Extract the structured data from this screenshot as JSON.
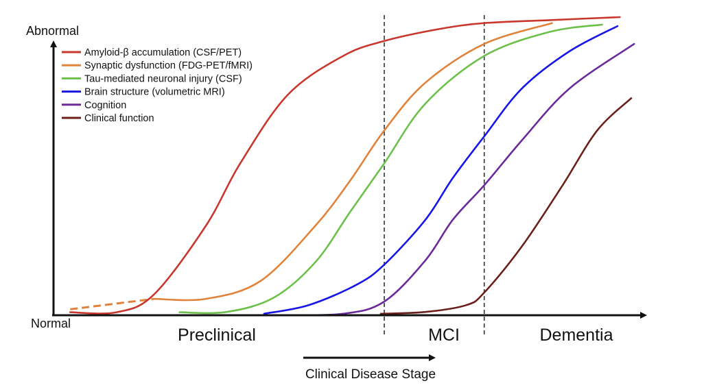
{
  "chart_data": {
    "type": "line",
    "title": "",
    "ylabel_top": "Abnormal",
    "ylabel_bottom": "Normal",
    "xlabel": "Clinical Disease Stage",
    "x_range": [
      0,
      100
    ],
    "y_range": [
      0,
      1
    ],
    "grid": false,
    "legend_position": "top-left",
    "stages": [
      {
        "label": "Preclinical",
        "x_center": 27.5
      },
      {
        "label": "MCI",
        "x_center": 65.5
      },
      {
        "label": "Dementia",
        "x_center": 89.5
      }
    ],
    "stage_boundaries": [
      55.6,
      72.4
    ],
    "series": [
      {
        "name": "Amyloid-β accumulation (CSF/PET)",
        "color": "#c8372d",
        "points": [
          [
            2.8,
            0.01
          ],
          [
            10.6,
            0.01
          ],
          [
            16.9,
            0.07
          ],
          [
            25.6,
            0.3
          ],
          [
            31.4,
            0.51
          ],
          [
            39.4,
            0.74
          ],
          [
            48.7,
            0.87
          ],
          [
            55.6,
            0.92
          ],
          [
            64.8,
            0.96
          ],
          [
            72.4,
            0.98
          ],
          [
            83.3,
            0.99
          ],
          [
            95.2,
            1.0
          ]
        ]
      },
      {
        "name": "Synaptic dysfunction (FDG-PET/fMRI)",
        "color": "#e0823a",
        "dashed_points": [
          [
            2.8,
            0.02
          ],
          [
            16.9,
            0.055
          ]
        ],
        "points": [
          [
            16.9,
            0.055
          ],
          [
            25.6,
            0.055
          ],
          [
            34.8,
            0.115
          ],
          [
            44.0,
            0.3
          ],
          [
            49.8,
            0.45
          ],
          [
            55.6,
            0.62
          ],
          [
            62.5,
            0.78
          ],
          [
            72.4,
            0.91
          ],
          [
            83.8,
            0.98
          ]
        ]
      },
      {
        "name": "Tau-mediated neuronal injury (CSF)",
        "color": "#6cc04a",
        "points": [
          [
            21.2,
            0.01
          ],
          [
            29.1,
            0.011
          ],
          [
            37.1,
            0.06
          ],
          [
            44.1,
            0.18
          ],
          [
            49.8,
            0.345
          ],
          [
            55.6,
            0.51
          ],
          [
            62.5,
            0.71
          ],
          [
            72.4,
            0.87
          ],
          [
            83.3,
            0.95
          ],
          [
            92.2,
            0.975
          ]
        ]
      },
      {
        "name": "Brain structure (volumetric MRI)",
        "color": "#1616e6",
        "points": [
          [
            35.4,
            0.005
          ],
          [
            42.9,
            0.034
          ],
          [
            51.0,
            0.103
          ],
          [
            55.6,
            0.17
          ],
          [
            62.5,
            0.32
          ],
          [
            67.1,
            0.46
          ],
          [
            72.4,
            0.6
          ],
          [
            78.7,
            0.76
          ],
          [
            86.7,
            0.885
          ],
          [
            94.8,
            0.97
          ]
        ]
      },
      {
        "name": "Cognition",
        "color": "#6a2a9a",
        "points": [
          [
            38.3,
            0.0
          ],
          [
            48.7,
            0.005
          ],
          [
            55.6,
            0.046
          ],
          [
            62.5,
            0.184
          ],
          [
            67.1,
            0.32
          ],
          [
            72.4,
            0.436
          ],
          [
            78.7,
            0.586
          ],
          [
            86.7,
            0.76
          ],
          [
            97.6,
            0.91
          ]
        ]
      },
      {
        "name": "Clinical function",
        "color": "#6b1f1a",
        "points": [
          [
            55.0,
            0.005
          ],
          [
            62.5,
            0.011
          ],
          [
            69.4,
            0.034
          ],
          [
            72.4,
            0.076
          ],
          [
            78.7,
            0.23
          ],
          [
            85.6,
            0.437
          ],
          [
            91.4,
            0.62
          ],
          [
            97.1,
            0.728
          ]
        ]
      }
    ]
  }
}
